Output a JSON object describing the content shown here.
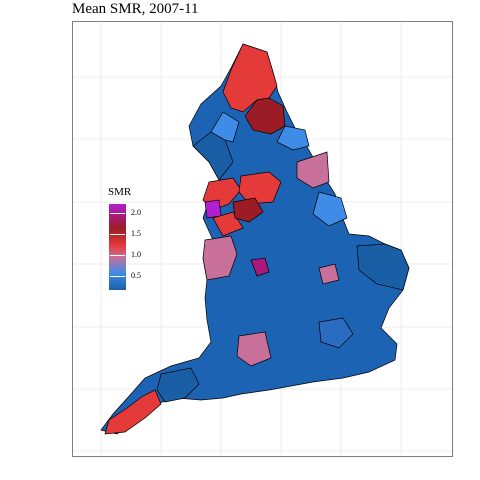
{
  "title": "Mean SMR, 2007-11",
  "legend": {
    "title": "SMR",
    "ticks": [
      "2.0",
      "1.5",
      "1.0",
      "0.5"
    ],
    "colors": {
      "max": "#b11fd3",
      "high": "#9c1c25",
      "mid_high": "#e43a3a",
      "mid": "#c86f9a",
      "low": "#3f8ce8",
      "min": "#1a5fa6"
    }
  }
}
